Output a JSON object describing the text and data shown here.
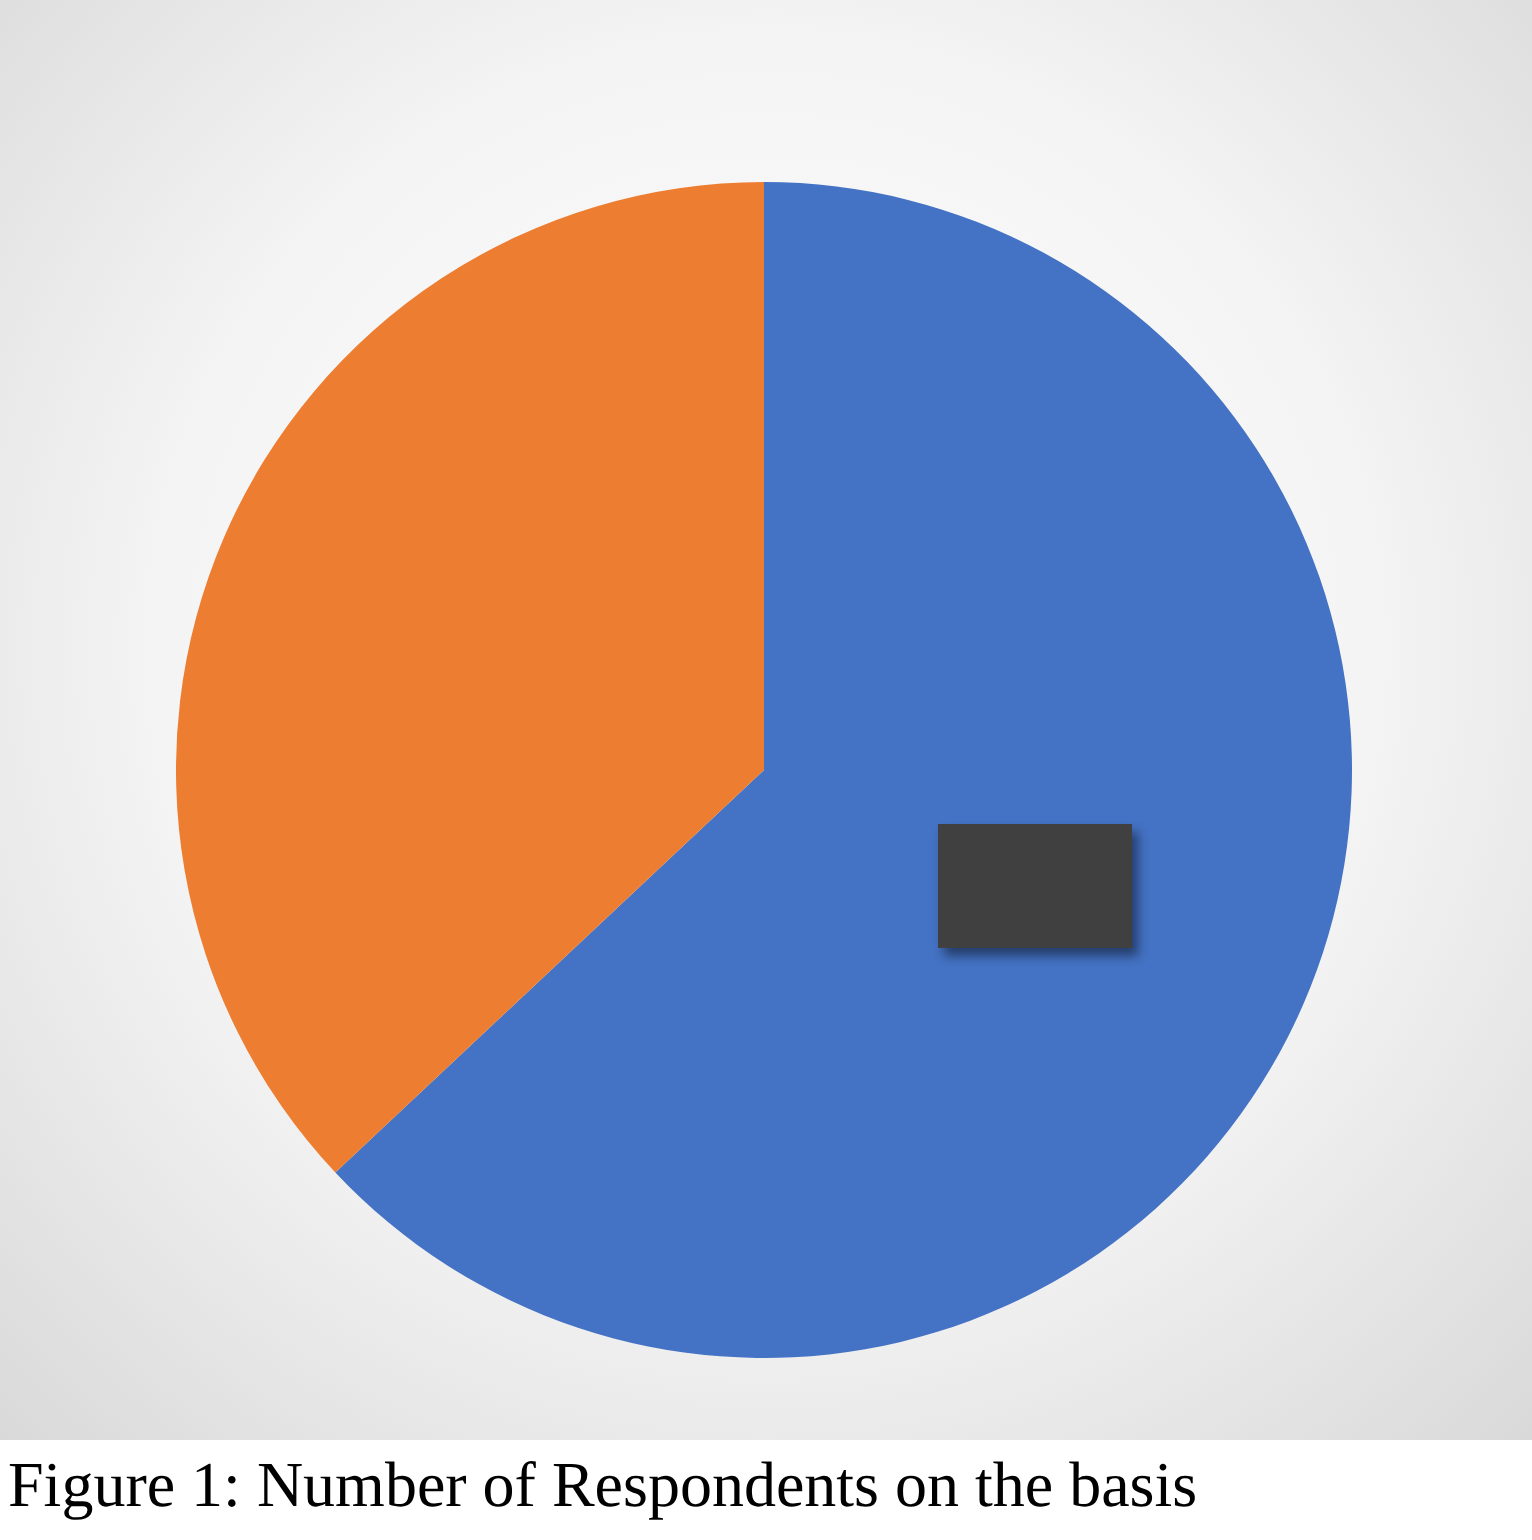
{
  "chart_data": {
    "type": "pie",
    "categories": [
      null,
      null
    ],
    "values": [
      63,
      37
    ],
    "colors": [
      "#4472c4",
      "#ed7d31"
    ],
    "annotations": [
      "Figure 1: Number of Respondents on the basis"
    ]
  }
}
